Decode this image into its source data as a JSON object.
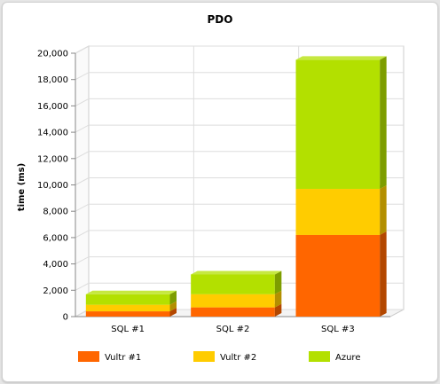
{
  "chart_data": {
    "type": "bar",
    "stacked": true,
    "three_d": true,
    "title": "PDO",
    "xlabel": "",
    "ylabel": "time (ms)",
    "categories": [
      "SQL #1",
      "SQL #2",
      "SQL #3"
    ],
    "series": [
      {
        "name": "Vultr #1",
        "values": [
          400,
          700,
          6200
        ],
        "color": "#ff6600"
      },
      {
        "name": "Vultr #2",
        "values": [
          500,
          1000,
          3500
        ],
        "color": "#ffcc00"
      },
      {
        "name": "Azure",
        "values": [
          800,
          1500,
          9800
        ],
        "color": "#b3e000"
      }
    ],
    "ylim": [
      0,
      20000
    ],
    "yticks": [
      "0",
      "2,000",
      "4,000",
      "6,000",
      "8,000",
      "10,000",
      "12,000",
      "14,000",
      "16,000",
      "18,000",
      "20,000"
    ],
    "grid": true,
    "legend_position": "bottom"
  }
}
